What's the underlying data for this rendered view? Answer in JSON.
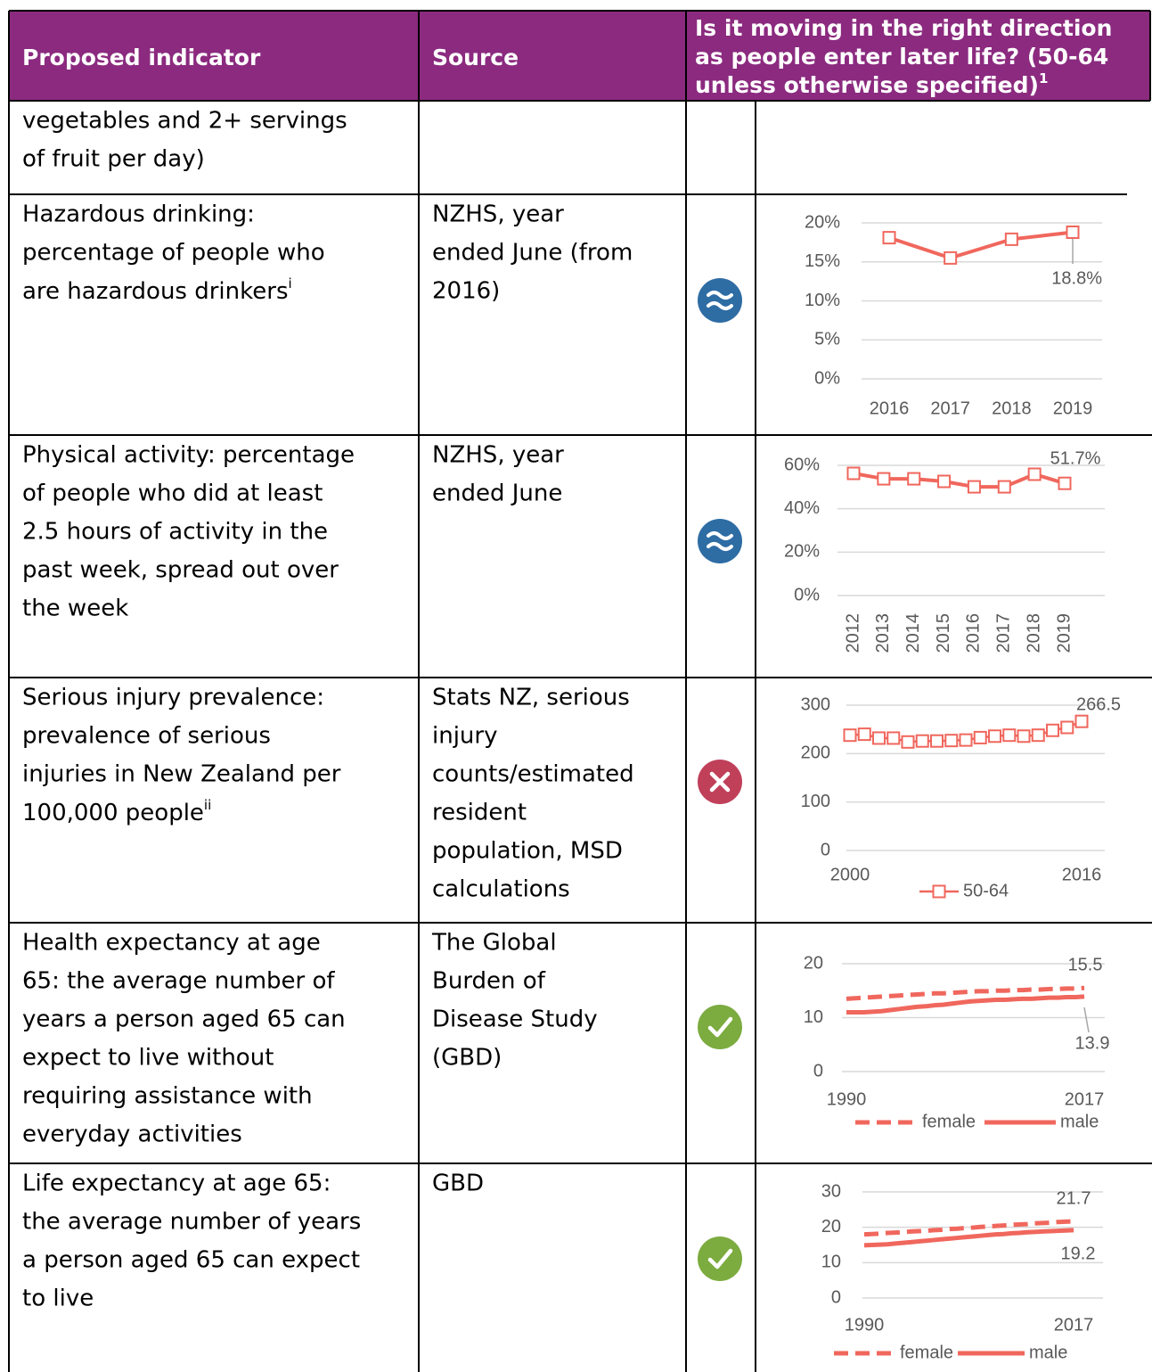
{
  "table": {
    "header": {
      "indicator": "Proposed indicator",
      "source": "Source",
      "direction": {
        "lines": [
          "Is it moving in the right direction",
          "as people enter later life? (50-64",
          "unless otherwise specified)"
        ],
        "sup": "1"
      }
    },
    "rows": [
      {
        "indicator": {
          "lines": [
            "vegetables and 2+ servings",
            "of fruit per day)"
          ]
        }
      },
      {
        "indicator": {
          "lines": [
            "Hazardous drinking:",
            "percentage of people who",
            "are hazardous drinkers"
          ],
          "sup": "i"
        },
        "source": [
          "NZHS, year",
          "ended June (from",
          "2016)"
        ],
        "chart": {
          "type": "line",
          "categories": [
            "2016",
            "2017",
            "2018",
            "2019"
          ],
          "values": [
            18.1,
            15.5,
            17.9,
            18.8
          ],
          "value_labels": [
            null,
            null,
            null,
            "18.8%"
          ],
          "color": "#f0675d",
          "marker": "square",
          "data_labels": "last",
          "ylim": [
            0,
            20
          ],
          "yticks": [
            {
              "value": 0,
              "label": "0%"
            },
            {
              "value": 5,
              "label": "5%"
            },
            {
              "value": 10,
              "label": "10%"
            },
            {
              "value": 15,
              "label": "15%"
            },
            {
              "value": 20,
              "label": "20%"
            }
          ],
          "grid": true
        }
      },
      {
        "indicator": {
          "lines": [
            "Physical activity: percentage",
            "of people who did at least",
            "2.5 hours of activity in the",
            "past week, spread out over",
            "the week"
          ]
        },
        "source": [
          "NZHS, year",
          "ended June"
        ],
        "chart": {
          "type": "line",
          "categories": [
            "2012",
            "2013",
            "2014",
            "2015",
            "2016",
            "2017",
            "2018",
            "2019"
          ],
          "values": [
            56.3,
            53.8,
            53.8,
            52.6,
            50.1,
            50.1,
            55.9,
            51.7
          ],
          "value_labels": [
            null,
            null,
            null,
            null,
            null,
            null,
            null,
            "51.7%"
          ],
          "color": "#f0675d",
          "marker": "square",
          "data_labels": "last",
          "rotate_x_labels": true,
          "ylim": [
            0,
            60
          ],
          "yticks": [
            {
              "value": 0,
              "label": "0%"
            },
            {
              "value": 20,
              "label": "20%"
            },
            {
              "value": 40,
              "label": "40%"
            },
            {
              "value": 60,
              "label": "60%"
            }
          ],
          "grid": true
        }
      },
      {
        "indicator": {
          "lines": [
            "Serious injury prevalence:",
            "prevalence of serious",
            "injuries in New Zealand per",
            "100,000 people"
          ],
          "sup": "ii"
        },
        "source": [
          "Stats NZ, serious",
          "injury",
          "counts/estimated",
          "resident",
          "population, MSD",
          "calculations"
        ],
        "chart": {
          "type": "line",
          "x": [
            2000,
            2001,
            2002,
            2003,
            2004,
            2005,
            2006,
            2007,
            2008,
            2009,
            2010,
            2011,
            2012,
            2013,
            2014,
            2015,
            2016
          ],
          "xlim": [
            2000,
            2016
          ],
          "xticks": [
            2000,
            2016
          ],
          "series": [
            {
              "name": "50-64",
              "color": "#f0675d",
              "style": "solid",
              "values": [
                238,
                240,
                232,
                232,
                224,
                226,
                226,
                227,
                228,
                233,
                236,
                238,
                236,
                238,
                248,
                254,
                266.5
              ]
            }
          ],
          "marker": "square",
          "data_labels": "last",
          "legend": "bottom",
          "ylim": [
            0,
            300
          ],
          "yticks": [
            0,
            100,
            200,
            300
          ],
          "grid": true
        }
      },
      {
        "indicator": {
          "lines": [
            "Health expectancy at age",
            "65: the average number of",
            "years a person aged 65 can",
            "expect to live without",
            "requiring assistance with",
            "everyday activities"
          ]
        },
        "source": [
          "The Global",
          "Burden of",
          "Disease Study",
          "(GBD)"
        ],
        "chart": {
          "type": "line",
          "x": [
            1990,
            1991,
            1992,
            1993,
            1994,
            1995,
            1996,
            1997,
            1998,
            1999,
            2000,
            2001,
            2002,
            2003,
            2004,
            2005,
            2006,
            2007,
            2008,
            2009,
            2010,
            2011,
            2012,
            2013,
            2014,
            2015,
            2016,
            2017
          ],
          "xlim": [
            1990,
            2017
          ],
          "xticks": [
            1990,
            2017
          ],
          "series": [
            {
              "name": "female",
              "color": "#f0675d",
              "style": "dashed",
              "values": [
                13.5,
                13.6,
                13.7,
                13.8,
                13.9,
                14.0,
                14.1,
                14.2,
                14.3,
                14.4,
                14.5,
                14.5,
                14.6,
                14.7,
                14.8,
                14.9,
                14.9,
                15.0,
                15.0,
                15.1,
                15.1,
                15.2,
                15.2,
                15.3,
                15.3,
                15.4,
                15.4,
                15.5
              ]
            },
            {
              "name": "male",
              "color": "#f0675d",
              "style": "solid",
              "values": [
                11.0,
                11.0,
                11.0,
                11.1,
                11.2,
                11.4,
                11.6,
                11.8,
                12.0,
                12.1,
                12.3,
                12.4,
                12.6,
                12.8,
                13.0,
                13.1,
                13.2,
                13.3,
                13.3,
                13.4,
                13.5,
                13.5,
                13.6,
                13.7,
                13.7,
                13.8,
                13.8,
                13.9
              ]
            }
          ],
          "data_labels": "last",
          "legend": "bottom",
          "ylim": [
            0,
            20
          ],
          "yticks": [
            0,
            10,
            20
          ],
          "grid": true
        }
      },
      {
        "indicator": {
          "lines": [
            "Life expectancy at age 65:",
            "the average number of years",
            "a person aged 65 can expect",
            "to live"
          ]
        },
        "source": [
          "GBD"
        ],
        "chart": {
          "type": "line",
          "x": [
            1990,
            1991,
            1992,
            1993,
            1994,
            1995,
            1996,
            1997,
            1998,
            1999,
            2000,
            2001,
            2002,
            2003,
            2004,
            2005,
            2006,
            2007,
            2008,
            2009,
            2010,
            2011,
            2012,
            2013,
            2014,
            2015,
            2016,
            2017
          ],
          "xlim": [
            1990,
            2017
          ],
          "xticks": [
            1990,
            2017
          ],
          "series": [
            {
              "name": "female",
              "color": "#f0675d",
              "style": "dashed",
              "values": [
                18.0,
                18.1,
                18.2,
                18.4,
                18.5,
                18.6,
                18.8,
                18.9,
                19.0,
                19.2,
                19.3,
                19.5,
                19.6,
                19.8,
                19.9,
                20.1,
                20.2,
                20.4,
                20.5,
                20.7,
                20.8,
                20.9,
                21.1,
                21.2,
                21.3,
                21.5,
                21.6,
                21.7
              ]
            },
            {
              "name": "male",
              "color": "#f0675d",
              "style": "solid",
              "values": [
                14.9,
                15.0,
                15.1,
                15.2,
                15.4,
                15.6,
                15.8,
                16.0,
                16.2,
                16.4,
                16.6,
                16.8,
                17.0,
                17.2,
                17.4,
                17.6,
                17.8,
                18.0,
                18.1,
                18.3,
                18.4,
                18.6,
                18.7,
                18.8,
                18.9,
                19.0,
                19.1,
                19.2
              ]
            }
          ],
          "data_labels": "last",
          "legend": "bottom",
          "ylim": [
            0,
            30
          ],
          "yticks": [
            0,
            10,
            20,
            30
          ],
          "grid": true
        }
      }
    ]
  }
}
